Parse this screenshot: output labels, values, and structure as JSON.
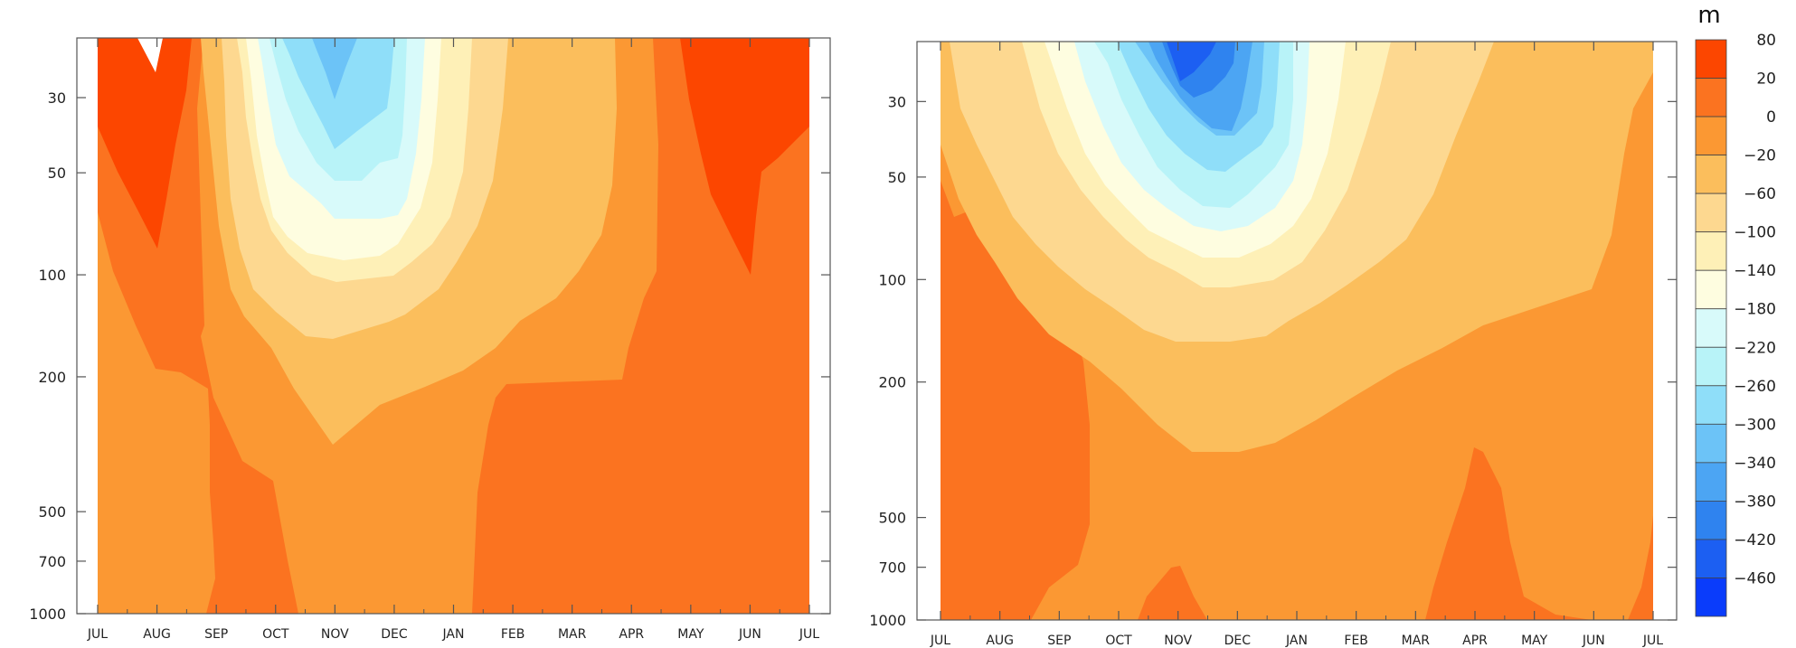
{
  "chart_data": [
    {
      "type": "contour",
      "panel": "left",
      "x_categories": [
        "JUL",
        "AUG",
        "SEP",
        "OCT",
        "NOV",
        "DEC",
        "JAN",
        "FEB",
        "MAR",
        "APR",
        "MAY",
        "JUN",
        "JUL"
      ],
      "y_ticks": [
        30,
        50,
        100,
        200,
        500,
        700,
        1000
      ],
      "y_scale": "log",
      "y_inverted": true,
      "ylim": [
        1000,
        20
      ],
      "min_value_region": {
        "month": "NOV",
        "level_hpa": 30,
        "value": -300
      },
      "max_value_region": {
        "months": [
          "JUL",
          "AUG",
          "MAY",
          "JUN"
        ],
        "level_hpa": 30,
        "value": 20
      }
    },
    {
      "type": "contour",
      "panel": "right",
      "x_categories": [
        "JUL",
        "AUG",
        "SEP",
        "OCT",
        "NOV",
        "DEC",
        "JAN",
        "FEB",
        "MAR",
        "APR",
        "MAY",
        "JUN",
        "JUL"
      ],
      "y_ticks": [
        30,
        50,
        100,
        200,
        500,
        700,
        1000
      ],
      "y_scale": "log",
      "y_inverted": true,
      "ylim": [
        1000,
        20
      ],
      "min_value_region": {
        "month": "NOV",
        "level_hpa": 25,
        "value": -420
      },
      "max_value_region": {
        "months": [
          "AUG",
          "NOV",
          "APR"
        ],
        "level_hpa": 500,
        "value": 0
      }
    }
  ],
  "colorbar": {
    "unit": "m",
    "labels": [
      "80",
      "20",
      "0",
      "−20",
      "−60",
      "−100",
      "−140",
      "−180",
      "−220",
      "−260",
      "−300",
      "−340",
      "−380",
      "−420",
      "−460"
    ],
    "colors": [
      "#fc4600",
      "#fb7320",
      "#fb9833",
      "#fbbe5c",
      "#fdd890",
      "#fef0b7",
      "#fefde0",
      "#d8fafa",
      "#b8f3f8",
      "#8fdef9",
      "#6cc3f7",
      "#4ca5f3",
      "#2f83ef",
      "#1c5ff2",
      "#0a3cfb"
    ]
  },
  "colors": {
    "axis": "#555555",
    "c20": "#fc4600",
    "c0": "#fb7320",
    "cm20": "#fb9833",
    "cm60": "#fbbe5c",
    "cm100": "#fdd890",
    "cm140": "#fef0b7",
    "cm180": "#fefde0",
    "cm220": "#d8fafa",
    "cm260": "#b8f3f8",
    "cm300": "#8fdef9",
    "cm340": "#6cc3f7",
    "cm380": "#4ca5f3",
    "cm420": "#2f83ef"
  }
}
